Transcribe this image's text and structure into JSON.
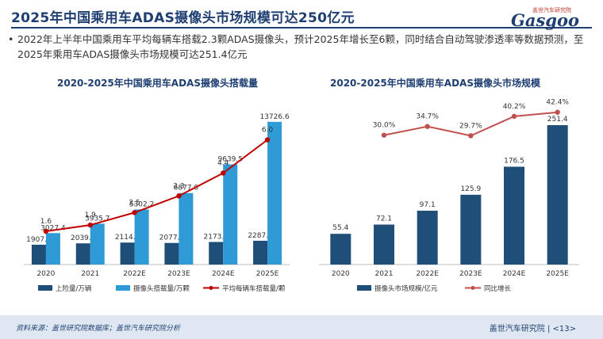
{
  "header": {
    "title": "2025年中国乘用车ADAS摄像头市场规模可达250亿元",
    "logo_text": "Gasgoo",
    "logo_sub": "盖世汽车研究院"
  },
  "bullet": {
    "text": "2022年上半年中国乘用车平均每辆车搭载2.3颗ADAS摄像头，预计2025年增长至6颗，同时结合自动驾驶渗透率等数据预测，至2025年乘用车ADAS摄像头市场规模可达251.4亿元"
  },
  "footer": {
    "source": "资料来源：盖世研究院数据库；盖世汽车研究院分析",
    "brand": "盖世汽车研究院",
    "page": "<13>"
  },
  "colors": {
    "dark_blue": "#1f4e79",
    "light_blue": "#2e9bd6",
    "line_red": "#c00000",
    "line_red_soft": "#c0504d"
  },
  "chart_data": [
    {
      "type": "bar",
      "title": "2020-2025年中国乘用车ADAS摄像头搭载量",
      "categories": [
        "2020",
        "2021",
        "2022E",
        "2023E",
        "2024E",
        "2025E"
      ],
      "series": [
        {
          "name": "上险量/万辆",
          "kind": "bar",
          "values": [
            1907.3,
            2039.5,
            2114.5,
            2077.7,
            2173.4,
            2287.8
          ]
        },
        {
          "name": "摄像头搭载量/万颗",
          "kind": "bar",
          "values": [
            3027.4,
            3935.7,
            5302.2,
            6877.0,
            9639.5,
            13726.6
          ]
        },
        {
          "name": "平均每辆车搭载量/颗",
          "kind": "line",
          "values": [
            1.6,
            1.9,
            2.5,
            3.3,
            4.4,
            6.0
          ]
        }
      ],
      "bar_labels": [
        [
          "1907.3",
          "2039.5",
          "2114.5",
          "2077.7",
          "2173.4",
          "2287.8"
        ],
        [
          "3027.4",
          "3935.7",
          "5302.2",
          "6877.0",
          "9639.5",
          "13726.6"
        ]
      ],
      "line_labels": [
        "1.6",
        "1.9",
        "2.5",
        "3.3",
        "4.4",
        "6.0"
      ],
      "ylim": [
        0,
        16000
      ],
      "y2lim": [
        0,
        8
      ],
      "legend": "bottom"
    },
    {
      "type": "bar",
      "title": "2020-2025年中国乘用车ADAS摄像头市场规模",
      "categories": [
        "2020",
        "2021",
        "2022E",
        "2023E",
        "2024E",
        "2025E"
      ],
      "series": [
        {
          "name": "摄像头市场规模/亿元",
          "kind": "bar",
          "values": [
            55.4,
            72.1,
            97.1,
            125.9,
            176.5,
            251.4
          ]
        },
        {
          "name": "同比增长",
          "kind": "line",
          "values": [
            null,
            30.0,
            34.7,
            29.7,
            40.2,
            42.4
          ]
        }
      ],
      "bar_labels": [
        "55.4",
        "72.1",
        "97.1",
        "125.9",
        "176.5",
        "251.4"
      ],
      "line_labels": [
        "",
        "30.0%",
        "34.7%",
        "29.7%",
        "40.2%",
        "42.4%"
      ],
      "ylim": [
        0,
        300
      ],
      "y2lim": [
        -40,
        50
      ],
      "legend": "bottom"
    }
  ]
}
